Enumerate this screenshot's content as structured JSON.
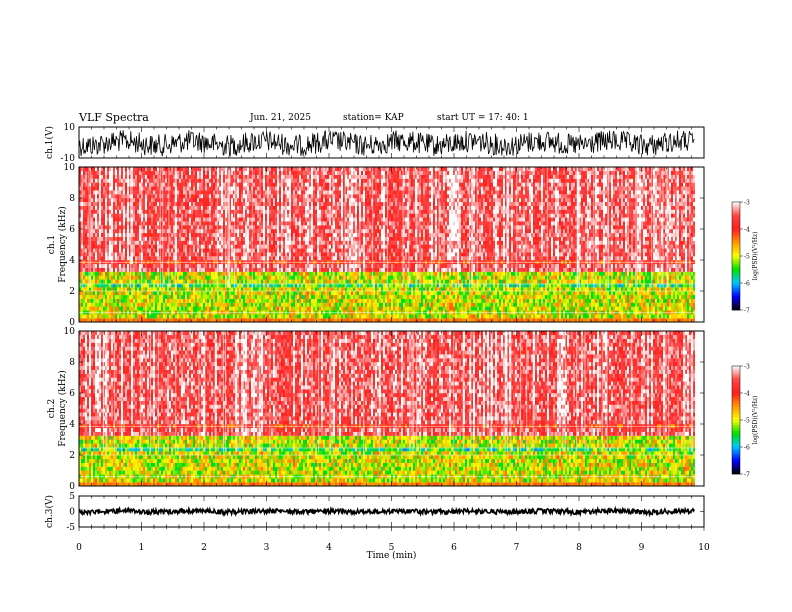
{
  "header": {
    "title": "VLF Spectra",
    "date": "Jun. 21, 2025",
    "station": "station= KAP",
    "start_ut": "start  UT  =   17: 40: 1"
  },
  "chart_data": [
    {
      "type": "line",
      "name": "waveform-ch1",
      "ylabel": "ch.1(V)",
      "ylim": [
        -10,
        10
      ],
      "yticks": [
        "10",
        "-10"
      ],
      "xlim": [
        0,
        10
      ],
      "approx_range": [
        -8,
        7
      ]
    },
    {
      "type": "heatmap",
      "name": "spectrogram-ch1",
      "ylabel": "ch.1\nFrequency  (kHz)",
      "ylabel_lines": [
        "ch.1",
        "Frequency  (kHz)"
      ],
      "ylim": [
        0,
        10
      ],
      "yticks": [
        "0",
        "2",
        "4",
        "6",
        "8",
        "10"
      ],
      "xlim": [
        0,
        10
      ],
      "data_end_min": 9.85,
      "colorbar": {
        "label": "log(PSD)(V²/Hz)",
        "range": [
          -7,
          -3
        ],
        "ticks": [
          "-3",
          "-4",
          "-5",
          "-6",
          "-7"
        ]
      }
    },
    {
      "type": "heatmap",
      "name": "spectrogram-ch2",
      "ylabel": "ch.2\nFrequency  (kHz)",
      "ylabel_lines": [
        "ch.2",
        "Frequency  (kHz)"
      ],
      "ylim": [
        0,
        10
      ],
      "yticks": [
        "0",
        "2",
        "4",
        "6",
        "8",
        "10"
      ],
      "xlim": [
        0,
        10
      ],
      "data_end_min": 9.85,
      "colorbar": {
        "label": "log(PSD)(V²/Hz)",
        "range": [
          -7,
          -3
        ],
        "ticks": [
          "-3",
          "-4",
          "-5",
          "-6",
          "-7"
        ]
      }
    },
    {
      "type": "line",
      "name": "waveform-ch3",
      "ylabel": "ch.3(V)",
      "ylim": [
        -5,
        5
      ],
      "yticks": [
        "5",
        "0",
        "-5"
      ],
      "xlim": [
        0,
        10
      ],
      "approx_range": [
        -0.3,
        0.3
      ]
    }
  ],
  "xaxis": {
    "label": "Time  (min)",
    "ticks": [
      "0",
      "1",
      "2",
      "3",
      "4",
      "5",
      "6",
      "7",
      "8",
      "9",
      "10"
    ]
  },
  "colors": {
    "spectrum": [
      "#ffffff",
      "#ff2020",
      "#ff7f00",
      "#ffff00",
      "#00e000",
      "#00c8ff",
      "#0000ff",
      "#000000"
    ]
  }
}
